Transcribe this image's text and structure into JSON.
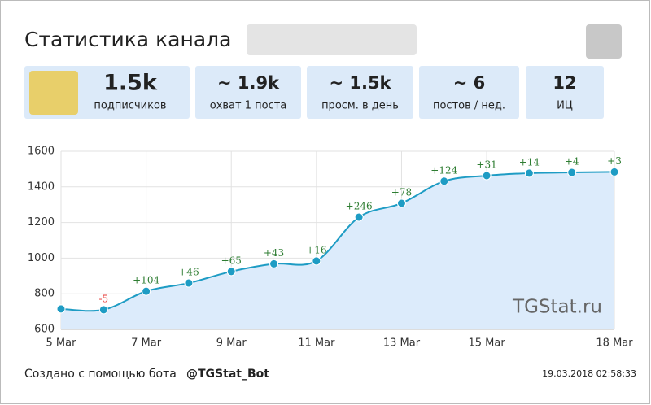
{
  "header": {
    "title": "Статистика канала"
  },
  "stats": [
    {
      "value": "1.5k",
      "label": "подписчиков"
    },
    {
      "value": "~ 1.9k",
      "label": "охват 1 поста"
    },
    {
      "value": "~ 1.5k",
      "label": "просм. в день"
    },
    {
      "value": "~ 6",
      "label": "постов / нед."
    },
    {
      "value": "12",
      "label": "ИЦ"
    }
  ],
  "chart_data": {
    "type": "area-line",
    "categories": [
      "5 Mar",
      null,
      "7 Mar",
      null,
      "9 Mar",
      null,
      "11 Mar",
      null,
      "13 Mar",
      null,
      "15 Mar",
      null,
      null,
      "18 Mar"
    ],
    "values": [
      715,
      710,
      814,
      860,
      925,
      968,
      984,
      1230,
      1308,
      1432,
      1463,
      1477,
      1481,
      1484
    ],
    "point_labels": [
      null,
      "-5",
      "+104",
      "+46",
      "+65",
      "+43",
      "+16",
      "+246",
      "+78",
      "+124",
      "+31",
      "+14",
      "+4",
      "+3"
    ],
    "color": "#1e9cc4",
    "area_color": "#dcebfb",
    "positive_label_color": "#2e7d32",
    "negative_label_color": "#e53935",
    "ylim": [
      600,
      1600
    ],
    "yticks": [
      600,
      800,
      1000,
      1200,
      1400,
      1600
    ],
    "grid": true,
    "watermark": "TGStat.ru"
  },
  "footer": {
    "text": "Создано с помощью бота",
    "bot": "@TGStat_Bot",
    "timestamp": "19.03.2018 02:58:33"
  }
}
